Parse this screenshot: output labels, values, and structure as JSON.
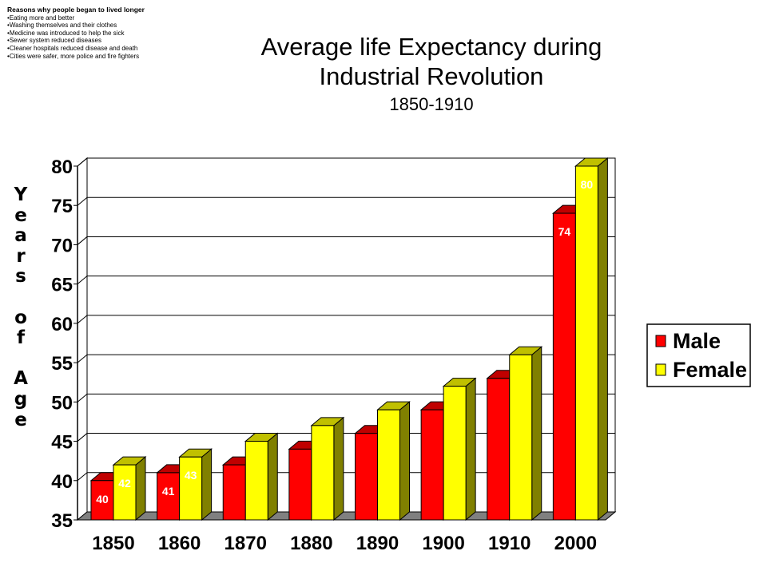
{
  "notes": {
    "heading": "Reasons why people began to lived longer",
    "items": [
      "Eating more and better",
      "Washing themselves and their clothes",
      "Medicine was introduced to help the sick",
      "Sewer system reduced diseases",
      "Cleaner hospitals reduced disease and death",
      "Cities were safer, more police and fire fighters"
    ]
  },
  "chart_data": {
    "type": "bar",
    "title_line1": "Average life Expectancy during",
    "title_line2": "Industrial Revolution",
    "subtitle": "1850-1910",
    "ylabel": "Years of Age",
    "xlabel": "",
    "categories": [
      "1850",
      "1860",
      "1870",
      "1880",
      "1890",
      "1900",
      "1910",
      "2000"
    ],
    "series": [
      {
        "name": "Male",
        "color": "#ff0000",
        "values": [
          40,
          41,
          42,
          44,
          46,
          49,
          53,
          74
        ]
      },
      {
        "name": "Female",
        "color": "#ffff00",
        "values": [
          42,
          43,
          45,
          47,
          49,
          52,
          56,
          80
        ]
      }
    ],
    "data_labels": {
      "Male": [
        "40",
        "41",
        "",
        "",
        "",
        "",
        "",
        "74"
      ],
      "Female": [
        "42",
        "43",
        "",
        "",
        "",
        "",
        "",
        "80"
      ]
    },
    "ylim": [
      35,
      80
    ],
    "yticks": [
      "35",
      "40",
      "45",
      "50",
      "55",
      "60",
      "65",
      "70",
      "75",
      "80"
    ],
    "grid": true,
    "legend_position": "right",
    "style": "3d"
  }
}
